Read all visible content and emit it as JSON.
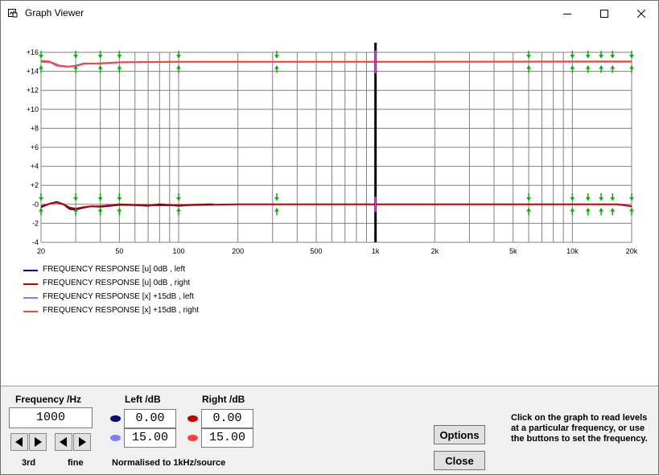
{
  "window": {
    "title": "Graph Viewer",
    "icon": "graph-window-icon"
  },
  "chart_data": {
    "type": "line",
    "xscale": "log",
    "xlim": [
      20,
      20000
    ],
    "ylim": [
      -4,
      16
    ],
    "x_ticks": [
      20,
      50,
      100,
      200,
      500,
      1000,
      2000,
      5000,
      10000,
      20000
    ],
    "x_tick_labels": [
      "20",
      "50",
      "100",
      "200",
      "500",
      "1k",
      "2k",
      "5k",
      "10k",
      "20k"
    ],
    "y_ticks": [
      16,
      14,
      12,
      10,
      8,
      6,
      4,
      2,
      0,
      -2,
      -4
    ],
    "y_tick_labels": [
      "+16",
      "+14",
      "+12",
      "+10",
      "+8",
      "+6",
      "+4",
      "+2",
      "-0",
      "-2",
      "-4"
    ],
    "grid": true,
    "cursor_x": 1000,
    "marker_frequencies": [
      20,
      30,
      40,
      50,
      100,
      315,
      6000,
      10000,
      12000,
      14000,
      16000,
      20000
    ],
    "series": [
      {
        "name": "FREQUENCY RESPONSE [u] 0dB , left",
        "color": "#000080",
        "points": [
          [
            20,
            -0.3
          ],
          [
            22,
            0.05
          ],
          [
            24,
            0.25
          ],
          [
            26,
            0.0
          ],
          [
            28,
            -0.5
          ],
          [
            30,
            -0.55
          ],
          [
            33,
            -0.35
          ],
          [
            36,
            -0.2
          ],
          [
            40,
            -0.25
          ],
          [
            45,
            -0.15
          ],
          [
            50,
            -0.05
          ],
          [
            60,
            -0.08
          ],
          [
            70,
            -0.15
          ],
          [
            80,
            0.0
          ],
          [
            100,
            -0.15
          ],
          [
            120,
            -0.05
          ],
          [
            140,
            0.0
          ],
          [
            150,
            0.0
          ]
        ]
      },
      {
        "name": "FREQUENCY RESPONSE [u] 0dB , right",
        "color": "#c00000",
        "points": [
          [
            20,
            -0.2
          ],
          [
            22,
            0.05
          ],
          [
            24,
            0.2
          ],
          [
            26,
            0.0
          ],
          [
            28,
            -0.35
          ],
          [
            30,
            -0.45
          ],
          [
            33,
            -0.3
          ],
          [
            36,
            -0.2
          ],
          [
            40,
            -0.2
          ],
          [
            45,
            -0.1
          ],
          [
            50,
            0.0
          ],
          [
            70,
            -0.1
          ],
          [
            100,
            -0.1
          ],
          [
            200,
            0.0
          ],
          [
            1000,
            0.0
          ],
          [
            17000,
            0.0
          ],
          [
            20000,
            -0.2
          ]
        ]
      },
      {
        "name": "FREQUENCY RESPONSE [x] +15dB , left",
        "color": "#8080ff",
        "points": [
          [
            20,
            15.0
          ],
          [
            23,
            14.9
          ],
          [
            25,
            14.6
          ],
          [
            28,
            14.5
          ],
          [
            30,
            14.6
          ],
          [
            33,
            14.85
          ],
          [
            40,
            14.8
          ],
          [
            50,
            14.95
          ],
          [
            100,
            15.0
          ],
          [
            300,
            15.0
          ],
          [
            1000,
            15.0
          ],
          [
            20000,
            15.0
          ]
        ]
      },
      {
        "name": "FREQUENCY RESPONSE [x] +15dB , right",
        "color": "#ff4040",
        "points": [
          [
            20,
            15.1
          ],
          [
            22,
            15.05
          ],
          [
            24,
            14.6
          ],
          [
            27,
            14.5
          ],
          [
            30,
            14.55
          ],
          [
            33,
            14.8
          ],
          [
            40,
            14.85
          ],
          [
            50,
            14.95
          ],
          [
            100,
            15.0
          ],
          [
            300,
            15.0
          ],
          [
            1000,
            15.0
          ],
          [
            20000,
            15.05
          ]
        ]
      }
    ]
  },
  "panel": {
    "freq_label": "Frequency /Hz",
    "freq_value": "1000",
    "left_label": "Left /dB",
    "right_label": "Right /dB",
    "left_u": "0.00",
    "left_x": "15.00",
    "right_u": "0.00",
    "right_x": "15.00",
    "step_3rd": "3rd",
    "step_fine": "fine",
    "normalised": "Normalised to 1kHz/source",
    "options": "Options",
    "close": "Close",
    "help": "Click on the graph to read levels at a particular frequency, or use the buttons to set the frequency."
  }
}
